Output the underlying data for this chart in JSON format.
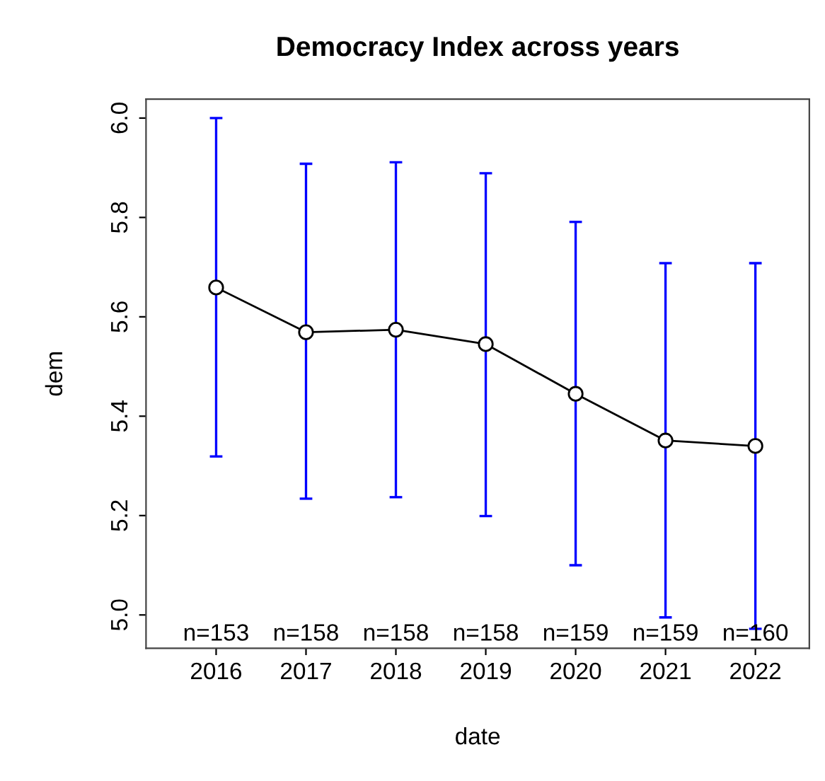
{
  "chart_data": {
    "type": "line",
    "title": "Democracy Index across years",
    "xlabel": "date",
    "ylabel": "dem",
    "categories": [
      "2016",
      "2017",
      "2018",
      "2019",
      "2020",
      "2021",
      "2022"
    ],
    "series": [
      {
        "color": "#000000",
        "values": [
          5.659,
          5.569,
          5.574,
          5.545,
          5.445,
          5.351,
          5.34
        ],
        "errors": [
          [
            5.319,
            6.0
          ],
          [
            5.234,
            5.908
          ],
          [
            5.237,
            5.911
          ],
          [
            5.199,
            5.889
          ],
          [
            5.1,
            5.791
          ],
          [
            4.995,
            5.708
          ],
          [
            4.972,
            5.708
          ]
        ]
      }
    ],
    "ylim": [
      4.933,
      6.038
    ],
    "yticks": [
      {
        "value": 5,
        "label": "5.0"
      },
      5.2,
      5.4,
      5.6,
      5.8,
      {
        "value": 6,
        "label": "6.0"
      }
    ],
    "marker": "circle",
    "line_style": "solid",
    "grid": false,
    "legend": false,
    "annotations": [
      "n=153",
      "n=158",
      "n=158",
      "n=158",
      "n=159",
      "n=159",
      "n=160"
    ]
  }
}
